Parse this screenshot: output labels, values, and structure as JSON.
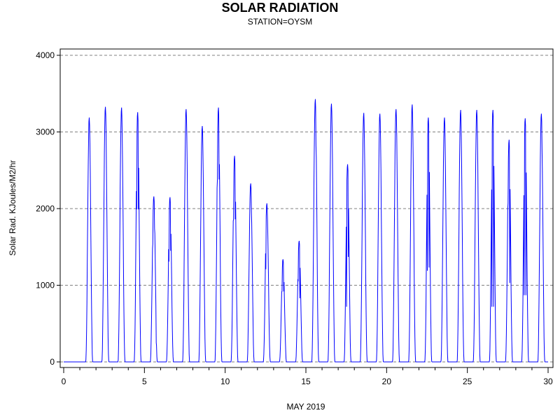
{
  "chart_data": {
    "type": "line",
    "title": "SOLAR RADIATION",
    "subtitle": "STATION=OYSM",
    "xlabel": "MAY 2019",
    "ylabel": "Solar Rad. KJoules/M2/hr",
    "xlim": [
      0,
      30
    ],
    "ylim": [
      0,
      4000
    ],
    "x_ticks": [
      0,
      5,
      10,
      15,
      20,
      25,
      30
    ],
    "y_ticks": [
      0,
      1000,
      2000,
      3000,
      4000
    ],
    "grid": "horizontal dashed",
    "line_color": "#0000ff",
    "series": [
      {
        "values_description_hours": "hourly samples, x in days of May 2019",
        "daily_peaks": [
          {
            "day": 1,
            "peak": 3190,
            "shape": "smooth"
          },
          {
            "day": 2,
            "peak": 3330,
            "shape": "smooth"
          },
          {
            "day": 3,
            "peak": 3320,
            "shape": "smooth"
          },
          {
            "day": 4,
            "peak": 3260,
            "shape": "broken",
            "dips": [
              2180,
              1990
            ]
          },
          {
            "day": 5,
            "peak": 2160,
            "shape": "broken",
            "dips": [
              410,
              250,
              1540,
              1740
            ]
          },
          {
            "day": 6,
            "peak": 2150,
            "shape": "broken",
            "dips": [
              1830,
              1310,
              1450
            ]
          },
          {
            "day": 7,
            "peak": 3300,
            "shape": "smooth"
          },
          {
            "day": 8,
            "peak": 3080,
            "shape": "broken",
            "dips": [
              2780,
              3050
            ]
          },
          {
            "day": 9,
            "peak": 3320,
            "shape": "broken",
            "dips": [
              2650,
              2380
            ]
          },
          {
            "day": 10,
            "peak": 2690,
            "shape": "broken",
            "dips": [
              2190,
              1860
            ]
          },
          {
            "day": 11,
            "peak": 2330,
            "shape": "broken",
            "dips": [
              1090,
              2120,
              1940
            ]
          },
          {
            "day": 12,
            "peak": 2070,
            "shape": "broken",
            "dips": [
              490,
              1210,
              1980
            ]
          },
          {
            "day": 13,
            "peak": 1340,
            "shape": "broken",
            "dips": [
              820,
              920
            ]
          },
          {
            "day": 14,
            "peak": 1580,
            "shape": "broken",
            "dips": [
              460,
              1450,
              1050,
              830
            ]
          },
          {
            "day": 15,
            "peak": 3430,
            "shape": "broken",
            "dips": [
              2820
            ]
          },
          {
            "day": 16,
            "peak": 3370,
            "shape": "smooth"
          },
          {
            "day": 17,
            "peak": 2580,
            "shape": "broken",
            "dips": [
              2010,
              1820,
              720,
              1370
            ]
          },
          {
            "day": 18,
            "peak": 3250,
            "shape": "smooth"
          },
          {
            "day": 19,
            "peak": 3240,
            "shape": "smooth"
          },
          {
            "day": 20,
            "peak": 3300,
            "shape": "smooth"
          },
          {
            "day": 21,
            "peak": 3360,
            "shape": "smooth"
          },
          {
            "day": 22,
            "peak": 3190,
            "shape": "broken",
            "dips": [
              1430,
              1190,
              1230
            ]
          },
          {
            "day": 23,
            "peak": 3190,
            "shape": "smooth"
          },
          {
            "day": 24,
            "peak": 3290,
            "shape": "smooth"
          },
          {
            "day": 25,
            "peak": 3290,
            "shape": "smooth"
          },
          {
            "day": 26,
            "peak": 3290,
            "shape": "broken",
            "dips": [
              720
            ]
          },
          {
            "day": 27,
            "peak": 2900,
            "shape": "broken",
            "dips": [
              760,
              2070,
              1030
            ]
          },
          {
            "day": 28,
            "peak": 3180,
            "shape": "broken",
            "dips": [
              1420,
              870
            ]
          },
          {
            "day": 29,
            "peak": 3240,
            "shape": "broken",
            "dips": [
              2380,
              2740
            ]
          }
        ]
      }
    ]
  }
}
